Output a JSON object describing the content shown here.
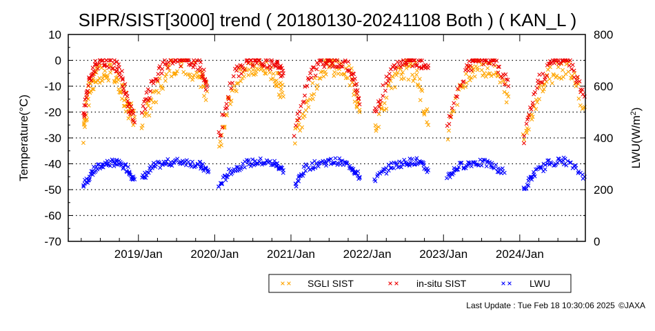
{
  "chart_data": {
    "type": "scatter",
    "title": "SIPR/SIST[3000] trend ( 20180130-20241108 Both ) ( KAN_L )",
    "ylabel_left": "Temperature(°C)",
    "ylabel_right_main": "LWU(W/m",
    "ylabel_right_sup": "2",
    "ylabel_right_close": ")",
    "ylim_left": [
      -70,
      10
    ],
    "ylim_right": [
      0,
      800
    ],
    "xlim": [
      "2018-01-30",
      "2024-11-08"
    ],
    "y_ticks_left": [
      "10",
      "0",
      "-10",
      "-20",
      "-30",
      "-40",
      "-50",
      "-60",
      "-70"
    ],
    "y_ticks_right": [
      "800",
      "600",
      "400",
      "200",
      "0"
    ],
    "x_ticks": [
      "2019/Jan",
      "2020/Jan",
      "2021/Jan",
      "2022/Jan",
      "2023/Jan",
      "2024/Jan"
    ],
    "grid": "horizontal dotted",
    "legend_placement": "bottom-right",
    "series": [
      {
        "name": "SGLI SIST",
        "color": "#ffa500",
        "axis": "left",
        "seasons": [
          {
            "x": [
              2018.28,
              2018.35,
              2018.45,
              2018.6,
              2018.75,
              2018.85,
              2018.95
            ],
            "y": [
              -28,
              -12,
              -5,
              -4,
              -8,
              -18,
              -22
            ]
          },
          {
            "x": [
              2019.05,
              2019.2,
              2019.4,
              2019.6,
              2019.8,
              2019.9
            ],
            "y": [
              -24,
              -15,
              -3,
              -2,
              -5,
              -12
            ]
          },
          {
            "x": [
              2020.05,
              2020.25,
              2020.45,
              2020.6,
              2020.8,
              2020.9
            ],
            "y": [
              -32,
              -10,
              -3,
              -2,
              -6,
              -14
            ]
          },
          {
            "x": [
              2021.05,
              2021.25,
              2021.45,
              2021.6,
              2021.8,
              2021.9
            ],
            "y": [
              -29,
              -13,
              -2,
              -2,
              -7,
              -20
            ]
          },
          {
            "x": [
              2022.1,
              2022.3,
              2022.5,
              2022.65,
              2022.8
            ],
            "y": [
              -25,
              -11,
              -3,
              -5,
              -25
            ]
          },
          {
            "x": [
              2023.05,
              2023.3,
              2023.45,
              2023.65,
              2023.85
            ],
            "y": [
              -27,
              -5,
              -2,
              -3,
              -14
            ]
          },
          {
            "x": [
              2024.05,
              2024.25,
              2024.45,
              2024.65,
              2024.85
            ],
            "y": [
              -32,
              -12,
              -4,
              -2,
              -18
            ]
          }
        ]
      },
      {
        "name": "in-situ SIST",
        "color": "#ee0000",
        "axis": "left",
        "seasons": [
          {
            "x": [
              2018.28,
              2018.35,
              2018.45,
              2018.6,
              2018.75,
              2018.85,
              2018.95
            ],
            "y": [
              -22,
              -8,
              -1,
              0,
              -3,
              -15,
              -24
            ]
          },
          {
            "x": [
              2019.05,
              2019.2,
              2019.4,
              2019.6,
              2019.8,
              2019.9
            ],
            "y": [
              -20,
              -8,
              0,
              0,
              -2,
              -10
            ]
          },
          {
            "x": [
              2020.05,
              2020.25,
              2020.45,
              2020.6,
              2020.8,
              2020.9
            ],
            "y": [
              -30,
              -6,
              0,
              0,
              -2,
              -5
            ]
          },
          {
            "x": [
              2021.05,
              2021.25,
              2021.45,
              2021.6,
              2021.8,
              2021.9
            ],
            "y": [
              -27,
              -6,
              0,
              0,
              -4,
              -17
            ]
          },
          {
            "x": [
              2022.1,
              2022.3,
              2022.5,
              2022.65,
              2022.8
            ],
            "y": [
              -20,
              -5,
              0,
              0,
              -2
            ]
          },
          {
            "x": [
              2023.05,
              2023.3,
              2023.45,
              2023.65,
              2023.85
            ],
            "y": [
              -25,
              -3,
              0,
              0,
              -10
            ]
          },
          {
            "x": [
              2024.05,
              2024.25,
              2024.45,
              2024.65,
              2024.85
            ],
            "y": [
              -30,
              -8,
              0,
              0,
              -14
            ]
          }
        ]
      },
      {
        "name": "LWU",
        "color": "#0000ff",
        "axis": "right",
        "seasons": [
          {
            "x": [
              2018.28,
              2018.4,
              2018.55,
              2018.7,
              2018.85,
              2018.95
            ],
            "y": [
              215,
              270,
              300,
              305,
              285,
              240
            ]
          },
          {
            "x": [
              2019.05,
              2019.2,
              2019.4,
              2019.6,
              2019.8,
              2019.92
            ],
            "y": [
              240,
              290,
              305,
              310,
              295,
              270
            ]
          },
          {
            "x": [
              2020.05,
              2020.2,
              2020.4,
              2020.6,
              2020.8,
              2020.9
            ],
            "y": [
              210,
              270,
              300,
              308,
              300,
              275
            ]
          },
          {
            "x": [
              2021.05,
              2021.2,
              2021.4,
              2021.6,
              2021.8,
              2021.9
            ],
            "y": [
              215,
              285,
              305,
              310,
              290,
              245
            ]
          },
          {
            "x": [
              2022.1,
              2022.3,
              2022.5,
              2022.65,
              2022.8
            ],
            "y": [
              240,
              290,
              305,
              310,
              275
            ]
          },
          {
            "x": [
              2023.05,
              2023.2,
              2023.4,
              2023.6,
              2023.8
            ],
            "y": [
              250,
              290,
              305,
              300,
              265
            ]
          },
          {
            "x": [
              2024.05,
              2024.2,
              2024.4,
              2024.6,
              2024.85
            ],
            "y": [
              200,
              265,
              305,
              312,
              250
            ]
          }
        ]
      }
    ]
  },
  "footer": {
    "last_update": "Last Update : Tue Feb 18 10:30:06 2025",
    "credit": "©JAXA"
  }
}
